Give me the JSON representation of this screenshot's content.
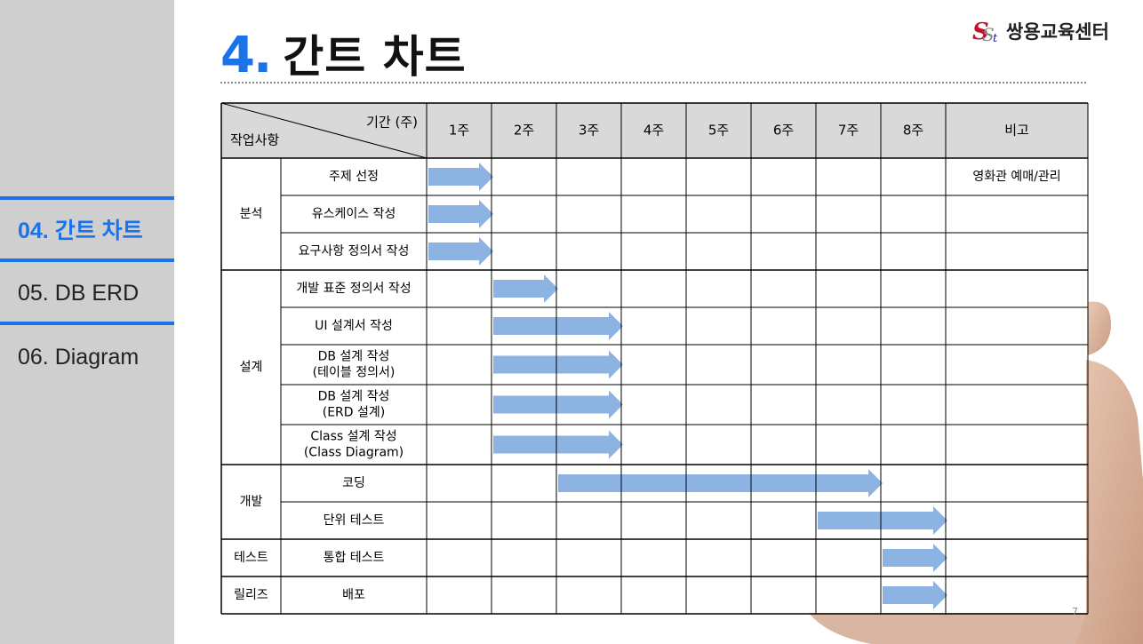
{
  "title": {
    "number": "4.",
    "text": "간트 차트"
  },
  "logo": {
    "text": "쌍용교육센터"
  },
  "nav": {
    "items": [
      {
        "label": "04. 간트 차트",
        "active": true
      },
      {
        "label": "05. DB ERD",
        "active": false
      },
      {
        "label": "06. Diagram",
        "active": false
      }
    ]
  },
  "colors": {
    "accent": "#1a73e8",
    "arrow": "#8db3e2",
    "sidebar": "#cfcfcf",
    "header_bg": "#d9d9d9"
  },
  "page_number": "7",
  "gantt": {
    "corner_top": "기간 (주)",
    "corner_bottom": "작업사항",
    "weeks": [
      "1주",
      "2주",
      "3주",
      "4주",
      "5주",
      "6주",
      "7주",
      "8주"
    ],
    "remark_header": "비고",
    "groups": [
      {
        "label": "분석",
        "rows": [
          {
            "task": [
              "주제 선정"
            ],
            "start": 1,
            "end": 1,
            "remark": "영화관 예매/관리"
          },
          {
            "task": [
              "유스케이스 작성"
            ],
            "start": 1,
            "end": 1,
            "remark": ""
          },
          {
            "task": [
              "요구사항 정의서 작성"
            ],
            "start": 1,
            "end": 1,
            "remark": ""
          }
        ]
      },
      {
        "label": "설계",
        "rows": [
          {
            "task": [
              "개발 표준 정의서 작성"
            ],
            "start": 2,
            "end": 2,
            "remark": ""
          },
          {
            "task": [
              "UI 설계서 작성"
            ],
            "start": 2,
            "end": 3,
            "remark": ""
          },
          {
            "task": [
              "DB 설계 작성",
              "(테이블 정의서)"
            ],
            "start": 2,
            "end": 3,
            "remark": ""
          },
          {
            "task": [
              "DB 설계 작성",
              "(ERD 설계)"
            ],
            "start": 2,
            "end": 3,
            "remark": ""
          },
          {
            "task": [
              "Class 설계 작성",
              "(Class Diagram)"
            ],
            "start": 2,
            "end": 3,
            "remark": ""
          }
        ]
      },
      {
        "label": "개발",
        "rows": [
          {
            "task": [
              "코딩"
            ],
            "start": 3,
            "end": 7,
            "remark": ""
          },
          {
            "task": [
              "단위 테스트"
            ],
            "start": 7,
            "end": 8,
            "remark": ""
          }
        ]
      },
      {
        "label": "테스트",
        "rows": [
          {
            "task": [
              "통합 테스트"
            ],
            "start": 8,
            "end": 8,
            "remark": ""
          }
        ]
      },
      {
        "label": "릴리즈",
        "rows": [
          {
            "task": [
              "배포"
            ],
            "start": 8,
            "end": 8,
            "remark": ""
          }
        ]
      }
    ]
  }
}
